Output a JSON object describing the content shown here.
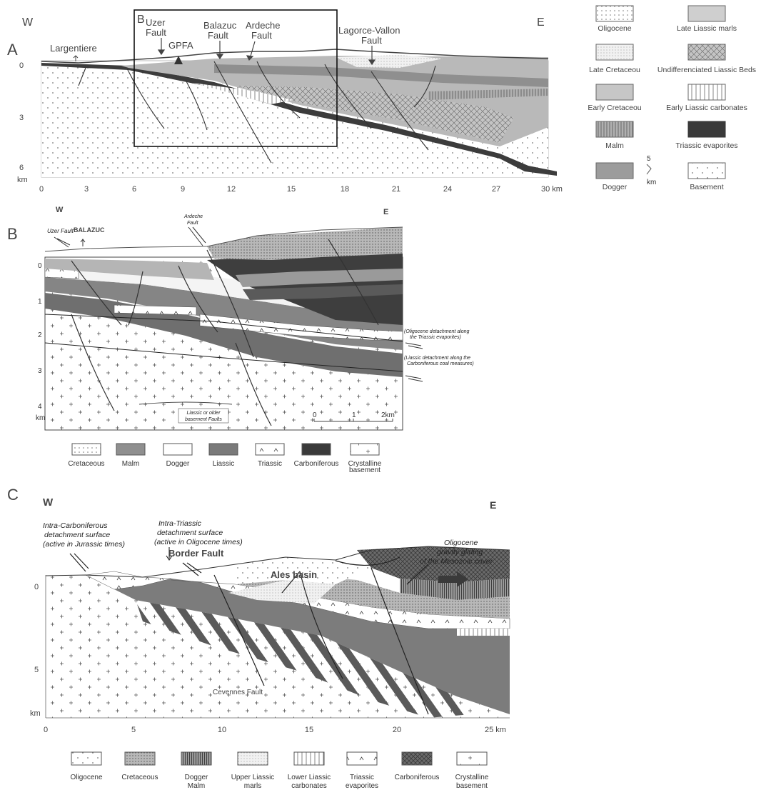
{
  "panel_a": {
    "letter": "A",
    "inset_letter": "B",
    "west": "W",
    "east": "E",
    "labels": {
      "largentiere": "Largentiere",
      "uzer_fault": [
        "Uzer",
        "Fault"
      ],
      "gpfa": "GPFA",
      "balazuc_fault": [
        "Balazuc",
        "Fault"
      ],
      "ardeche_fault": [
        "Ardeche",
        "Fault"
      ],
      "lagorce_fault": [
        "Lagorce-Vallon",
        "Fault"
      ]
    },
    "y_ticks": [
      "0",
      "3",
      "6",
      "km"
    ],
    "x_ticks": [
      "0",
      "3",
      "6",
      "9",
      "12",
      "15",
      "18",
      "21",
      "24",
      "27",
      "30 km"
    ],
    "legend": [
      {
        "label": "Oligocene",
        "pattern": "dots"
      },
      {
        "label": "Late Liassic marls",
        "pattern": "lightgray"
      },
      {
        "label": "Late Cretaceou",
        "pattern": "fine-dots"
      },
      {
        "label": "Undifferenciated Liassic Beds",
        "pattern": "crosshatch"
      },
      {
        "label": "Early Cretaceou",
        "pattern": "gray"
      },
      {
        "label": "Early Liassic carbonates",
        "pattern": "vlines"
      },
      {
        "label": "Malm",
        "pattern": "vlines-gray"
      },
      {
        "label": "Triassic evaporites",
        "pattern": "black"
      },
      {
        "label": "Dogger",
        "pattern": "midgray"
      },
      {
        "label": "Basement",
        "pattern": "sparse-dots"
      }
    ],
    "scale_top": "5",
    "scale_unit": "km"
  },
  "panel_b": {
    "letter": "B",
    "west": "W",
    "east": "E",
    "labels": {
      "uzer_fault": "Uzer Fault",
      "balazuc": "BALAZUC",
      "ardeche_fault": [
        "Ardeche",
        "Fault"
      ],
      "oligocene_detachment": [
        "(Oligocene detachment along",
        "the Triassic evaporites)"
      ],
      "liassic_detachment": [
        "(Liassic detachment along the",
        "Carboniferous coal measures)"
      ],
      "basement_faults": [
        "Liassic or older",
        "basement Faults"
      ]
    },
    "y_ticks": [
      "0",
      "1",
      "2",
      "3",
      "4",
      "km"
    ],
    "scale": [
      "0",
      "1",
      "2km"
    ],
    "legend": [
      {
        "label": [
          "Cretaceous"
        ],
        "pattern": "dots"
      },
      {
        "label": [
          "Malm"
        ],
        "pattern": "midgray"
      },
      {
        "label": [
          "Dogger"
        ],
        "pattern": "white"
      },
      {
        "label": [
          "Liassic"
        ],
        "pattern": "darkgray"
      },
      {
        "label": [
          "Triassic"
        ],
        "pattern": "carets"
      },
      {
        "label": [
          "Carboniferous"
        ],
        "pattern": "black"
      },
      {
        "label": [
          "Crystalline",
          "basement"
        ],
        "pattern": "plus"
      }
    ]
  },
  "panel_c": {
    "letter": "C",
    "west": "W",
    "east": "E",
    "labels": {
      "intra_carb": [
        "Intra-Carboniferous",
        "detachment surface",
        "(active in Jurassic times)"
      ],
      "intra_trias": [
        "Intra-Triassic",
        "detachment surface",
        "(active in Oligocene times)"
      ],
      "border_fault": "Border Fault",
      "ales_basin": "Ales basin",
      "gliding": [
        "Oligocene",
        "gravity gliding",
        "of the Mesozoic cover"
      ],
      "cevennes_fault": "Cevennes Fault"
    },
    "y_ticks": [
      "0",
      "5",
      "km"
    ],
    "x_ticks": [
      "0",
      "5",
      "10",
      "15",
      "20",
      "25 km"
    ],
    "legend": [
      {
        "label": [
          "Oligocene"
        ],
        "pattern": "sparse-dots"
      },
      {
        "label": [
          "Cretaceous"
        ],
        "pattern": "gray-dots"
      },
      {
        "label": [
          "Dogger",
          "Malm"
        ],
        "pattern": "vlines-dense"
      },
      {
        "label": [
          "Upper Liassic",
          "marls"
        ],
        "pattern": "fine-dots"
      },
      {
        "label": [
          "Lower Liassic",
          "carbonates"
        ],
        "pattern": "vlines"
      },
      {
        "label": [
          "Triassic",
          "evaporites"
        ],
        "pattern": "carets"
      },
      {
        "label": [
          "Carboniferous"
        ],
        "pattern": "crosshatch-dark"
      },
      {
        "label": [
          "Crystalline",
          "basement"
        ],
        "pattern": "plus"
      }
    ]
  }
}
